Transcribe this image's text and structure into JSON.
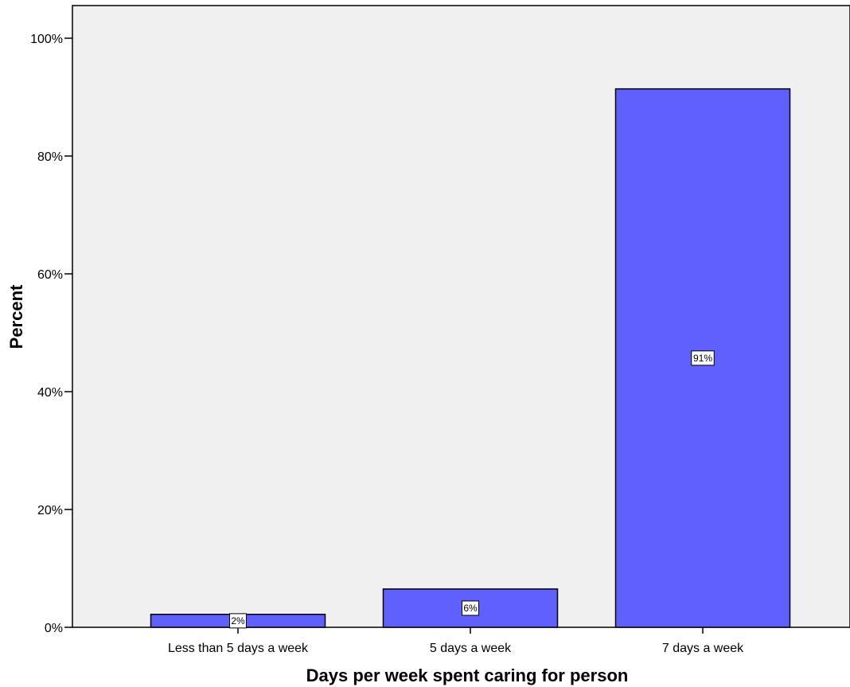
{
  "chart_data": {
    "type": "bar",
    "title": "",
    "categories": [
      "Less than 5 days a week",
      "5 days a week",
      "7 days a week"
    ],
    "values": [
      2.2,
      6.5,
      91.4
    ],
    "data_labels": [
      "2%",
      "6%",
      "91%"
    ],
    "xlabel": "Days per week spent caring for person",
    "ylabel": "Percent",
    "ylim": [
      0,
      100
    ],
    "yticks": [
      0,
      20,
      40,
      60,
      80,
      100
    ],
    "ytick_labels": [
      "0%",
      "20%",
      "40%",
      "60%",
      "80%",
      "100%"
    ],
    "grid": false,
    "legend": "none",
    "colors": {
      "bar_fill": "#6060ff",
      "plot_background": "#f0f0f0",
      "border": "#000000"
    }
  }
}
